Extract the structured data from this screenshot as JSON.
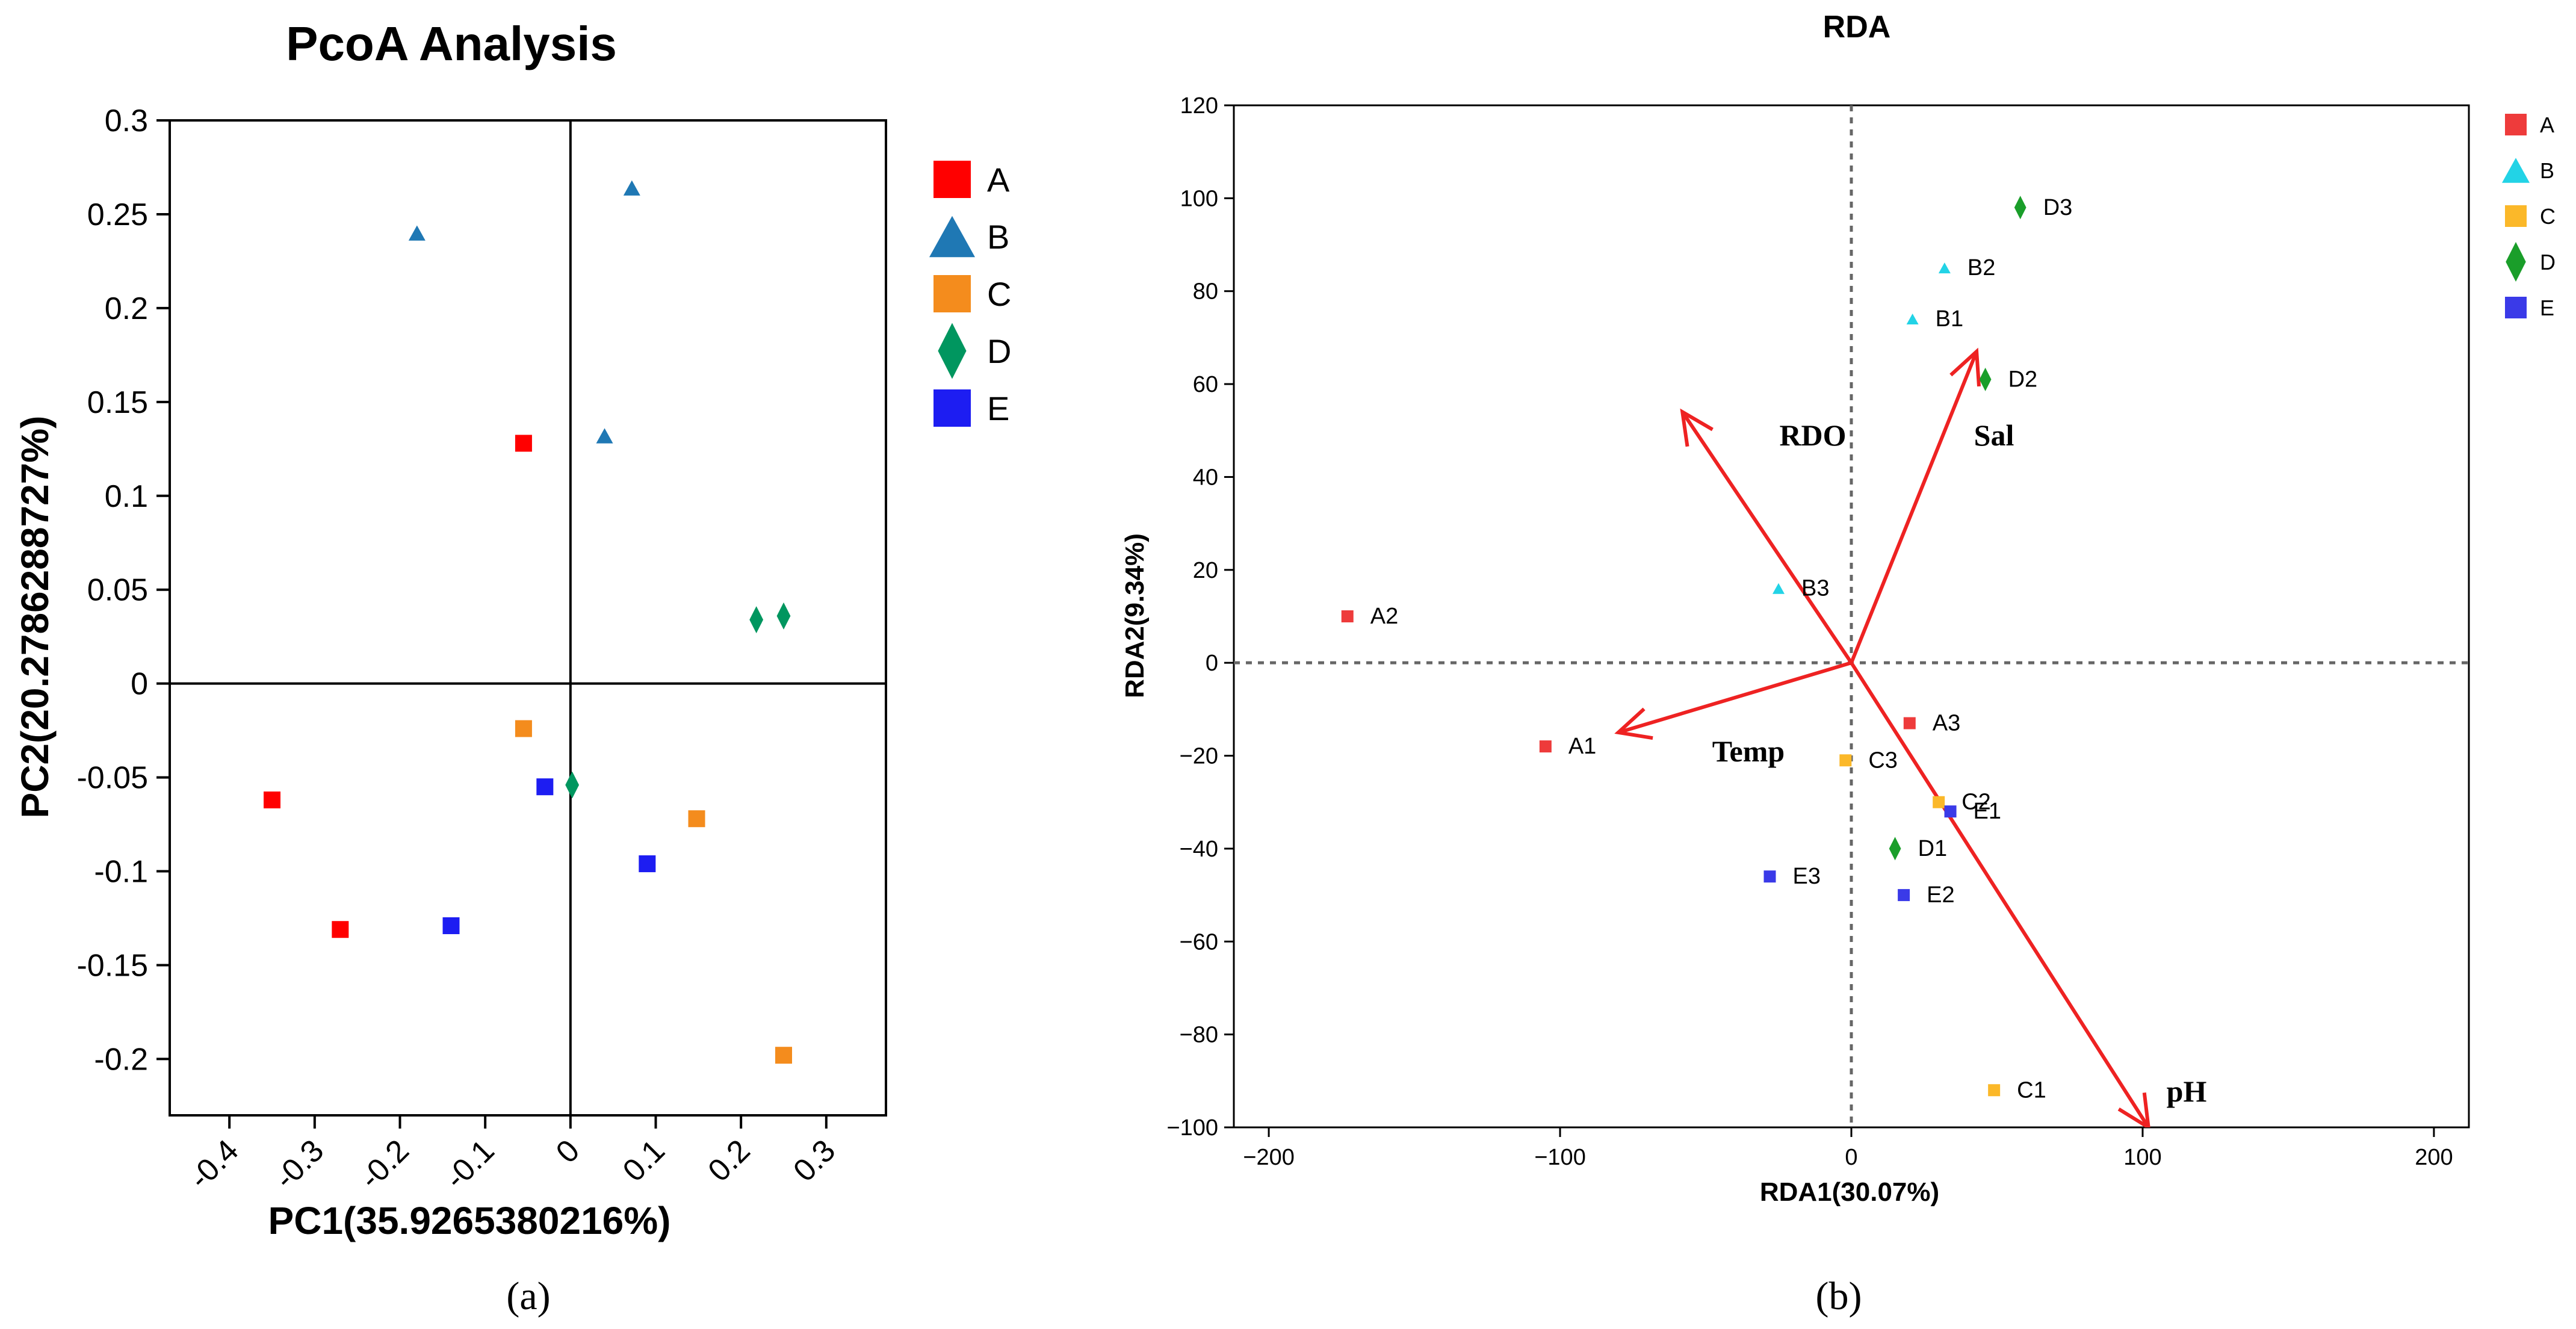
{
  "chart_data": [
    {
      "type": "scatter",
      "title": "PcoA Analysis",
      "xlabel": "PC1(35.9265380216%)",
      "ylabel": "PC2(20.2786288727%)",
      "xlim": [
        -0.47,
        0.37
      ],
      "ylim": [
        -0.23,
        0.3
      ],
      "xticks": [
        -0.4,
        -0.3,
        -0.2,
        -0.1,
        0,
        0.1,
        0.2,
        0.3
      ],
      "xtick_labels": [
        "-0.4",
        "-0.3",
        "-0.2",
        "-0.1",
        "0",
        "0.1",
        "0.2",
        "0.3"
      ],
      "yticks": [
        0.3,
        0.25,
        0.2,
        0.15,
        0.1,
        0.05,
        0,
        -0.05,
        -0.1,
        -0.15,
        -0.2
      ],
      "ytick_labels": [
        "0.3",
        "0.25",
        "0.2",
        "0.15",
        "0.1",
        "0.05",
        "0",
        "-0.05",
        "-0.1",
        "-0.15",
        "-0.2"
      ],
      "grid": false,
      "legend_position": "right",
      "series": [
        {
          "name": "A",
          "marker": "square",
          "color": "#ff0000",
          "points": [
            [
              -0.055,
              0.128
            ],
            [
              -0.35,
              -0.062
            ],
            [
              -0.27,
              -0.131
            ]
          ]
        },
        {
          "name": "B",
          "marker": "triangle",
          "color": "#1f78b4",
          "points": [
            [
              -0.18,
              0.24
            ],
            [
              0.072,
              0.264
            ],
            [
              0.04,
              0.132
            ]
          ]
        },
        {
          "name": "C",
          "marker": "square",
          "color": "#f48c1d",
          "points": [
            [
              -0.055,
              -0.024
            ],
            [
              0.148,
              -0.072
            ],
            [
              0.25,
              -0.198
            ]
          ]
        },
        {
          "name": "D",
          "marker": "diamond",
          "color": "#00965f",
          "points": [
            [
              0.218,
              0.034
            ],
            [
              0.25,
              0.036
            ],
            [
              0.002,
              -0.054
            ]
          ]
        },
        {
          "name": "E",
          "marker": "square",
          "color": "#1d1df2",
          "points": [
            [
              -0.03,
              -0.055
            ],
            [
              0.09,
              -0.096
            ],
            [
              -0.14,
              -0.129
            ]
          ]
        }
      ],
      "legend_entries": [
        "A",
        "B",
        "C",
        "D",
        "E"
      ],
      "panel_label": "(a)"
    },
    {
      "type": "scatter",
      "title": "RDA",
      "xlabel": "RDA1(30.07%)",
      "ylabel": "RDA2(9.34%)",
      "xlim": [
        -212,
        212
      ],
      "ylim": [
        -100,
        120
      ],
      "xticks": [
        -200,
        -100,
        0,
        100,
        200
      ],
      "xtick_labels": [
        "−200",
        "−100",
        "0",
        "100",
        "200"
      ],
      "yticks": [
        120,
        100,
        80,
        60,
        40,
        20,
        0,
        -20,
        -40,
        -60,
        -80,
        -100
      ],
      "ytick_labels": [
        "120",
        "100",
        "80",
        "60",
        "40",
        "20",
        "0",
        "−20",
        "−40",
        "−60",
        "−80",
        "−100"
      ],
      "grid": false,
      "legend_position": "right",
      "series": [
        {
          "name": "A",
          "marker": "square",
          "color": "#ee3b3b",
          "points": [
            {
              "label": "A1",
              "x": -105,
              "y": -18
            },
            {
              "label": "A2",
              "x": -173,
              "y": 10
            },
            {
              "label": "A3",
              "x": 20,
              "y": -13
            }
          ]
        },
        {
          "name": "B",
          "marker": "triangle",
          "color": "#22d3e6",
          "points": [
            {
              "label": "B1",
              "x": 21,
              "y": 74
            },
            {
              "label": "B2",
              "x": 32,
              "y": 85
            },
            {
              "label": "B3",
              "x": -25,
              "y": 16
            }
          ]
        },
        {
          "name": "C",
          "marker": "square",
          "color": "#fbb829",
          "points": [
            {
              "label": "C1",
              "x": 49,
              "y": -92
            },
            {
              "label": "C2",
              "x": 30,
              "y": -30
            },
            {
              "label": "C3",
              "x": -2,
              "y": -21
            }
          ]
        },
        {
          "name": "D",
          "marker": "diamond",
          "color": "#1a9e2a",
          "points": [
            {
              "label": "D1",
              "x": 15,
              "y": -40
            },
            {
              "label": "D2",
              "x": 46,
              "y": 61
            },
            {
              "label": "D3",
              "x": 58,
              "y": 98
            }
          ]
        },
        {
          "name": "E",
          "marker": "square",
          "color": "#3a3ae8",
          "points": [
            {
              "label": "E1",
              "x": 34,
              "y": -32
            },
            {
              "label": "E2",
              "x": 18,
              "y": -50
            },
            {
              "label": "E3",
              "x": -28,
              "y": -46
            }
          ]
        }
      ],
      "arrows": [
        {
          "label": "RDO",
          "x": -58,
          "y": 54
        },
        {
          "label": "Sal",
          "x": 43,
          "y": 67
        },
        {
          "label": "Temp",
          "x": -80,
          "y": -15
        },
        {
          "label": "pH",
          "x": 102,
          "y": -100
        }
      ],
      "arrow_color": "#ee2222",
      "legend_entries": [
        "A",
        "B",
        "C",
        "D",
        "E"
      ],
      "panel_label": "(b)"
    }
  ]
}
